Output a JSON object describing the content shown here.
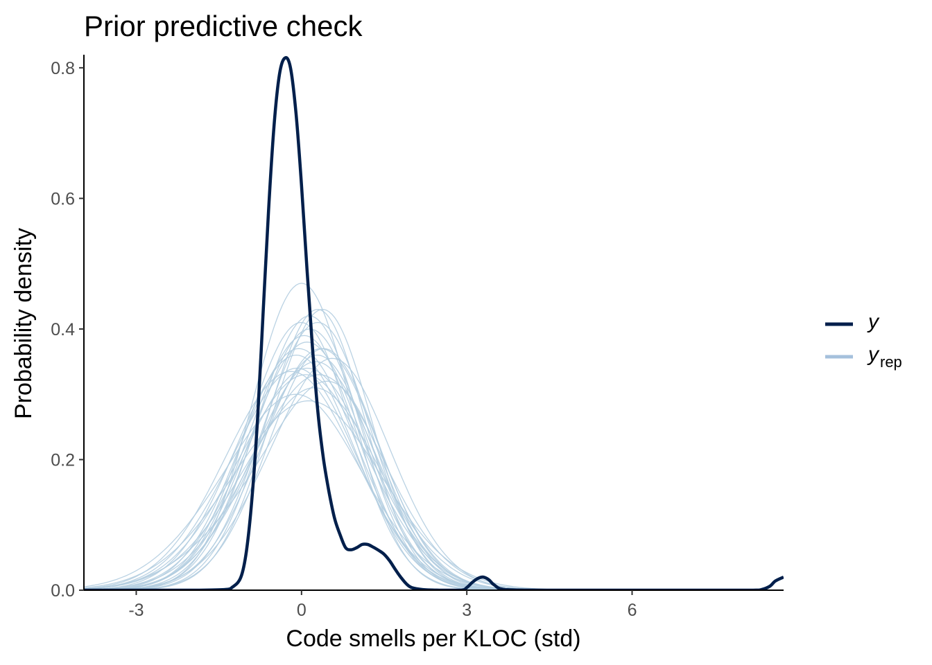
{
  "chart_data": {
    "type": "line",
    "title": "Prior predictive check",
    "xlabel": "Code smells per KLOC (std)",
    "ylabel": "Probability density",
    "xlim": [
      -3.95,
      8.75
    ],
    "ylim": [
      0,
      0.82
    ],
    "x_ticks": [
      -3,
      0,
      3,
      6
    ],
    "x_tick_labels": [
      "-3",
      "0",
      "3",
      "6"
    ],
    "y_ticks": [
      0,
      0.2,
      0.4,
      0.6,
      0.8
    ],
    "y_tick_labels": [
      "0.0",
      "0.2",
      "0.4",
      "0.6",
      "0.8"
    ],
    "grid": false,
    "legend_position": "right",
    "colors": {
      "y": "#011f4b",
      "yrep": "#b3cde0",
      "yrep_legend": "#a5c0dc"
    },
    "legend": [
      {
        "key": "y",
        "label": "y",
        "subscript": ""
      },
      {
        "key": "yrep",
        "label": "y",
        "subscript": "rep"
      }
    ],
    "series": [
      {
        "name": "y",
        "x": [
          -3.95,
          -2.0,
          -1.4,
          -1.25,
          -1.1,
          -1.0,
          -0.9,
          -0.8,
          -0.7,
          -0.6,
          -0.5,
          -0.4,
          -0.3,
          -0.2,
          -0.1,
          0.0,
          0.1,
          0.2,
          0.3,
          0.4,
          0.5,
          0.6,
          0.7,
          0.8,
          0.9,
          1.0,
          1.1,
          1.2,
          1.3,
          1.4,
          1.5,
          1.6,
          1.7,
          1.8,
          1.9,
          2.0,
          2.2,
          2.5,
          2.9,
          3.0,
          3.1,
          3.2,
          3.3,
          3.4,
          3.5,
          3.7,
          4.5,
          6.0,
          7.5,
          8.2,
          8.35,
          8.5,
          8.6,
          8.75
        ],
        "values": [
          0,
          0,
          0.001,
          0.005,
          0.02,
          0.06,
          0.14,
          0.26,
          0.42,
          0.58,
          0.71,
          0.79,
          0.815,
          0.8,
          0.73,
          0.62,
          0.49,
          0.37,
          0.27,
          0.2,
          0.15,
          0.11,
          0.085,
          0.065,
          0.062,
          0.065,
          0.07,
          0.07,
          0.066,
          0.061,
          0.055,
          0.045,
          0.032,
          0.02,
          0.01,
          0.004,
          0.001,
          0,
          0,
          0.004,
          0.012,
          0.018,
          0.02,
          0.016,
          0.008,
          0.001,
          0,
          0,
          0,
          0,
          0.001,
          0.006,
          0.014,
          0.02
        ]
      },
      {
        "name": "y_rep",
        "mu": -0.05,
        "sigma": 1.05,
        "peak": 0.37,
        "skew": 0.0
      },
      {
        "name": "y_rep",
        "mu": 0.05,
        "sigma": 0.95,
        "peak": 0.42,
        "skew": 0.1
      },
      {
        "name": "y_rep",
        "mu": 0.0,
        "sigma": 0.9,
        "peak": 0.47,
        "skew": 0.0
      },
      {
        "name": "y_rep",
        "mu": 0.15,
        "sigma": 1.1,
        "peak": 0.35,
        "skew": 0.1
      },
      {
        "name": "y_rep",
        "mu": -0.1,
        "sigma": 1.2,
        "peak": 0.33,
        "skew": 0.15
      },
      {
        "name": "y_rep",
        "mu": 0.1,
        "sigma": 1.0,
        "peak": 0.4,
        "skew": 0.05
      },
      {
        "name": "y_rep",
        "mu": 0.2,
        "sigma": 0.98,
        "peak": 0.41,
        "skew": 0.1
      },
      {
        "name": "y_rep",
        "mu": -0.3,
        "sigma": 1.15,
        "peak": 0.34,
        "skew": 0.2
      },
      {
        "name": "y_rep",
        "mu": 0.3,
        "sigma": 1.05,
        "peak": 0.37,
        "skew": 0.05
      },
      {
        "name": "y_rep",
        "mu": 0.0,
        "sigma": 1.25,
        "peak": 0.31,
        "skew": 0.2
      },
      {
        "name": "y_rep",
        "mu": 0.25,
        "sigma": 0.93,
        "peak": 0.43,
        "skew": 0.15
      },
      {
        "name": "y_rep",
        "mu": -0.2,
        "sigma": 1.08,
        "peak": 0.36,
        "skew": 0.1
      },
      {
        "name": "y_rep",
        "mu": 0.1,
        "sigma": 1.15,
        "peak": 0.34,
        "skew": 0.0
      },
      {
        "name": "y_rep",
        "mu": -0.05,
        "sigma": 1.0,
        "peak": 0.39,
        "skew": 0.1
      },
      {
        "name": "y_rep",
        "mu": 0.35,
        "sigma": 1.12,
        "peak": 0.355,
        "skew": 0.2
      },
      {
        "name": "y_rep",
        "mu": -0.4,
        "sigma": 1.3,
        "peak": 0.3,
        "skew": 0.25
      },
      {
        "name": "y_rep",
        "mu": 0.05,
        "sigma": 1.03,
        "peak": 0.38,
        "skew": 0.05
      },
      {
        "name": "y_rep",
        "mu": 0.2,
        "sigma": 1.2,
        "peak": 0.33,
        "skew": 0.1
      },
      {
        "name": "y_rep",
        "mu": -0.15,
        "sigma": 0.97,
        "peak": 0.41,
        "skew": 0.15
      },
      {
        "name": "y_rep",
        "mu": 0.0,
        "sigma": 1.1,
        "peak": 0.36,
        "skew": 0.3
      },
      {
        "name": "y_rep",
        "mu": 0.4,
        "sigma": 1.0,
        "peak": 0.37,
        "skew": 0.0
      },
      {
        "name": "y_rep",
        "mu": -0.25,
        "sigma": 1.18,
        "peak": 0.335,
        "skew": 0.05
      },
      {
        "name": "y_rep",
        "mu": 0.12,
        "sigma": 0.92,
        "peak": 0.43,
        "skew": 0.2
      },
      {
        "name": "y_rep",
        "mu": 0.0,
        "sigma": 1.35,
        "peak": 0.29,
        "skew": 0.1
      },
      {
        "name": "y_rep",
        "mu": -0.5,
        "sigma": 1.2,
        "peak": 0.32,
        "skew": 0.35,
        "bimodal": {
          "mu2": 0.9,
          "sigma2": 0.8,
          "w": 0.45
        }
      }
    ]
  }
}
